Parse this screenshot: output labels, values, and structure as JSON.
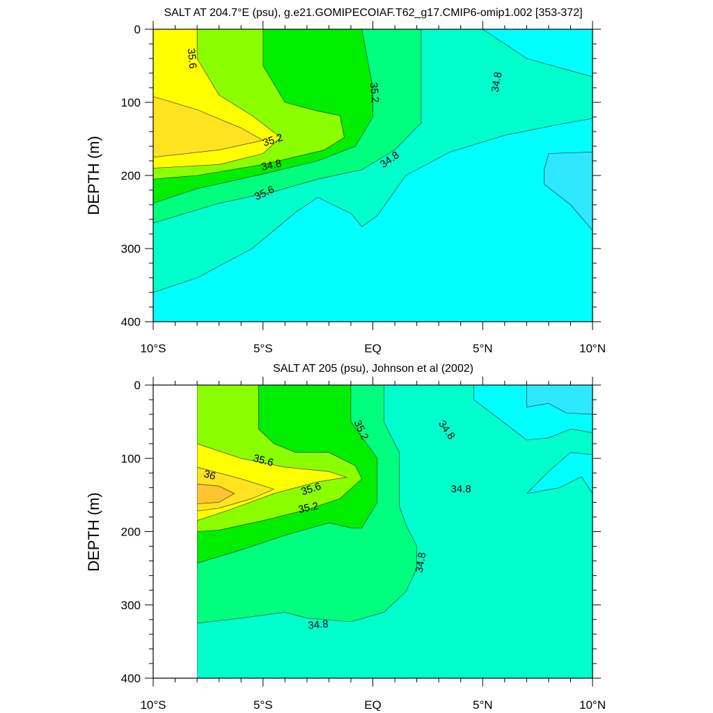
{
  "chart_data": [
    {
      "type": "heatmap",
      "subtype": "filled-contour",
      "title": "SALT AT 204.7°E (psu), g.e21.GOMIPECOIAF.T62_g17.CMIP6-omip1.002 [353-372]",
      "xlabel": "",
      "ylabel": "DEPTH (m)",
      "xlim": [
        -10,
        10
      ],
      "ylim": [
        400,
        0
      ],
      "x_ticks": [
        "10°S",
        "5°S",
        "EQ",
        "5°N",
        "10°N"
      ],
      "y_ticks": [
        "0",
        "100",
        "200",
        "300",
        "400"
      ],
      "contour_labels": [
        "35.6",
        "35.2",
        "34.8",
        "35.6",
        "35.2",
        "34.8",
        "34.8"
      ],
      "levels": [
        {
          "value": 34.6,
          "color": "#2ee8ff",
          "region": [
            [
              8,
              170
            ],
            [
              10,
              168
            ],
            [
              10,
              275
            ],
            [
              9,
              240
            ],
            [
              7.8,
              212
            ],
            [
              7.8,
              192
            ]
          ]
        },
        {
          "value": 34.8,
          "color": "#00ffff",
          "region": [
            [
              -10,
              360
            ],
            [
              -8,
              340
            ],
            [
              -5.5,
              300
            ],
            [
              -3.5,
              250
            ],
            [
              -2.5,
              230
            ],
            [
              -1,
              252
            ],
            [
              -0.5,
              270
            ],
            [
              0.2,
              255
            ],
            [
              1.5,
              200
            ],
            [
              3.5,
              168
            ],
            [
              6,
              145
            ],
            [
              8.5,
              130
            ],
            [
              10,
              122
            ],
            [
              10,
              400
            ],
            [
              -10,
              400
            ]
          ]
        },
        {
          "value": 34.8,
          "color": "#00ffff",
          "region": [
            [
              5,
              0
            ],
            [
              7,
              40
            ],
            [
              10,
              65
            ],
            [
              10,
              0
            ]
          ]
        },
        {
          "value": 35.0,
          "color": "#00ffcc",
          "region": [
            [
              -10,
              400
            ],
            [
              -10,
              0
            ],
            [
              10,
              0
            ],
            [
              10,
              400
            ]
          ]
        },
        {
          "value": 35.2,
          "color": "#00ff7f",
          "region": [
            [
              -10,
              265
            ],
            [
              -7,
              238
            ],
            [
              -4.5,
              222
            ],
            [
              -2.5,
              205
            ],
            [
              -0.5,
              192
            ],
            [
              1,
              165
            ],
            [
              2.2,
              128
            ],
            [
              2.2,
              0
            ],
            [
              -10,
              0
            ]
          ]
        },
        {
          "value": 35.4,
          "color": "#00ee00",
          "region": [
            [
              -10,
              238
            ],
            [
              -8,
              218
            ],
            [
              -5,
              198
            ],
            [
              -2.5,
              180
            ],
            [
              -0.8,
              160
            ],
            [
              0,
              120
            ],
            [
              0,
              80
            ],
            [
              -0.5,
              0
            ],
            [
              -10,
              0
            ]
          ]
        },
        {
          "value": 35.6,
          "color": "#8bff00",
          "region": [
            [
              -10,
              0
            ],
            [
              -5,
              0
            ],
            [
              -5,
              50
            ],
            [
              -4,
              100
            ],
            [
              -2.5,
              112
            ],
            [
              -1.5,
              118
            ],
            [
              -1.3,
              148
            ],
            [
              -2.2,
              165
            ],
            [
              -5,
              185
            ],
            [
              -8,
              200
            ],
            [
              -10,
              205
            ]
          ]
        },
        {
          "value": 35.8,
          "color": "#ffff00",
          "region": [
            [
              -10,
              0
            ],
            [
              -8,
              0
            ],
            [
              -8,
              40
            ],
            [
              -7,
              90
            ],
            [
              -5.5,
              118
            ],
            [
              -4.2,
              148
            ],
            [
              -5,
              170
            ],
            [
              -7,
              185
            ],
            [
              -10,
              190
            ]
          ]
        },
        {
          "value": 36.0,
          "color": "#ffe31f",
          "region": [
            [
              -10,
              92
            ],
            [
              -8,
              110
            ],
            [
              -6,
              135
            ],
            [
              -5,
              152
            ],
            [
              -7,
              165
            ],
            [
              -10,
              175
            ]
          ]
        }
      ]
    },
    {
      "type": "heatmap",
      "subtype": "filled-contour",
      "title": "SALT AT 205 (psu), Johnson et al (2002)",
      "xlabel": "",
      "ylabel": "DEPTH (m)",
      "xlim": [
        -10,
        10
      ],
      "ylim": [
        400,
        0
      ],
      "data_x_range": [
        -8,
        10
      ],
      "x_ticks": [
        "10°S",
        "5°S",
        "EQ",
        "5°N",
        "10°N"
      ],
      "y_ticks": [
        "0",
        "100",
        "200",
        "300",
        "400"
      ],
      "contour_labels": [
        "35.6",
        "36",
        "35.6",
        "35.2",
        "35.2",
        "34.8",
        "34.8",
        "34.8",
        "34.8"
      ],
      "levels": [
        {
          "value": 34.6,
          "color": "#2ee8ff",
          "region": [
            [
              7,
              0
            ],
            [
              10,
              0
            ],
            [
              10,
              40
            ],
            [
              8.8,
              38
            ],
            [
              8,
              25
            ],
            [
              7,
              30
            ]
          ]
        },
        {
          "value": 34.8,
          "color": "#00ffff",
          "region": [
            [
              4.6,
              0
            ],
            [
              10,
              0
            ],
            [
              10,
              65
            ],
            [
              9,
              60
            ],
            [
              8,
              72
            ],
            [
              7,
              75
            ],
            [
              4.6,
              20
            ]
          ]
        },
        {
          "value": 34.8,
          "color": "#00ffff",
          "region": [
            [
              7,
              148
            ],
            [
              8,
              118
            ],
            [
              9,
              92
            ],
            [
              10,
              95
            ],
            [
              10,
              148
            ],
            [
              9.5,
              125
            ],
            [
              8.5,
              140
            ]
          ]
        },
        {
          "value": 35.0,
          "color": "#00ffcc",
          "region": [
            [
              -8,
              400
            ],
            [
              -8,
              0
            ],
            [
              10,
              0
            ],
            [
              10,
              400
            ]
          ]
        },
        {
          "value": 35.2,
          "color": "#00ff7f",
          "region": [
            [
              -8,
              325
            ],
            [
              -6,
              318
            ],
            [
              -4,
              310
            ],
            [
              -3,
              318
            ],
            [
              -1,
              323
            ],
            [
              0.5,
              310
            ],
            [
              1.5,
              282
            ],
            [
              2,
              250
            ],
            [
              2,
              220
            ],
            [
              1.5,
              190
            ],
            [
              1.2,
              165
            ],
            [
              1.2,
              92
            ],
            [
              0.5,
              50
            ],
            [
              0.5,
              0
            ],
            [
              -8,
              0
            ]
          ]
        },
        {
          "value": 35.4,
          "color": "#00ee00",
          "region": [
            [
              -8,
              243
            ],
            [
              -6,
              225
            ],
            [
              -4,
              205
            ],
            [
              -2,
              188
            ],
            [
              -1,
              195
            ],
            [
              -0.5,
              195
            ],
            [
              0.2,
              160
            ],
            [
              0.2,
              100
            ],
            [
              -1,
              50
            ],
            [
              -1,
              0
            ],
            [
              -8,
              0
            ]
          ]
        },
        {
          "value": 35.6,
          "color": "#8bff00",
          "region": [
            [
              -8,
              0
            ],
            [
              -5.2,
              0
            ],
            [
              -5.2,
              60
            ],
            [
              -4.5,
              80
            ],
            [
              -3.5,
              92
            ],
            [
              -2,
              92
            ],
            [
              -0.8,
              110
            ],
            [
              -0.5,
              128
            ],
            [
              -1.5,
              155
            ],
            [
              -3,
              170
            ],
            [
              -5,
              185
            ],
            [
              -7,
              198
            ],
            [
              -8,
              200
            ]
          ]
        },
        {
          "value": 35.8,
          "color": "#ffff00",
          "region": [
            [
              -8,
              80
            ],
            [
              -6,
              100
            ],
            [
              -4,
              112
            ],
            [
              -2,
              118
            ],
            [
              -1.2,
              126
            ],
            [
              -2.5,
              132
            ],
            [
              -4.5,
              148
            ],
            [
              -6.5,
              170
            ],
            [
              -8,
              185
            ]
          ]
        },
        {
          "value": 36.0,
          "color": "#ffe31f",
          "region": [
            [
              -8,
              112
            ],
            [
              -6,
              128
            ],
            [
              -4.5,
              142
            ],
            [
              -5.5,
              155
            ],
            [
              -7,
              168
            ],
            [
              -8,
              172
            ]
          ]
        },
        {
          "value": 36.2,
          "color": "#ffc430",
          "region": [
            [
              -8,
              135
            ],
            [
              -7,
              138
            ],
            [
              -6.3,
              148
            ],
            [
              -7,
              160
            ],
            [
              -8,
              162
            ]
          ]
        }
      ]
    }
  ]
}
